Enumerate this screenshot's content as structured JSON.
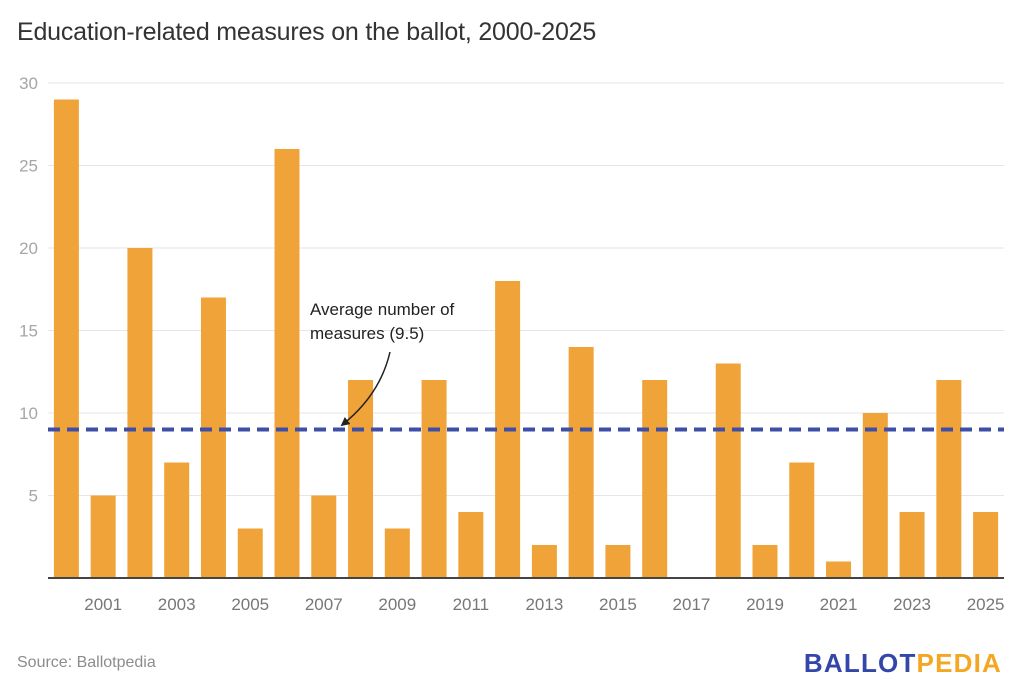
{
  "chart_data": {
    "type": "bar",
    "title": "Education-related measures on the ballot, 2000-2025",
    "xlabel": "",
    "ylabel": "",
    "ylim": [
      0,
      30
    ],
    "yticks": [
      5,
      10,
      15,
      20,
      25,
      30
    ],
    "grid": true,
    "categories": [
      "2000",
      "2001",
      "2002",
      "2003",
      "2004",
      "2005",
      "2006",
      "2007",
      "2008",
      "2009",
      "2010",
      "2011",
      "2012",
      "2013",
      "2014",
      "2015",
      "2016",
      "2017",
      "2018",
      "2019",
      "2020",
      "2021",
      "2022",
      "2023",
      "2024",
      "2025"
    ],
    "xtick_labels": [
      "2001",
      "2003",
      "2005",
      "2007",
      "2009",
      "2011",
      "2013",
      "2015",
      "2017",
      "2019",
      "2021",
      "2023",
      "2025"
    ],
    "values": [
      29,
      5,
      20,
      7,
      17,
      3,
      26,
      5,
      12,
      3,
      12,
      4,
      18,
      2,
      14,
      2,
      12,
      0,
      13,
      2,
      7,
      1,
      10,
      4,
      12,
      4
    ],
    "bar_color": "#f0a338",
    "reference_line": {
      "value": 9,
      "style": "dashed",
      "color": "#3e4fa8",
      "annotation": [
        "Average number of",
        "measures (9.5)"
      ]
    }
  },
  "footer": {
    "source": "Source: Ballotpedia",
    "logo_part1": "BALLOT",
    "logo_part2": "PEDIA"
  }
}
